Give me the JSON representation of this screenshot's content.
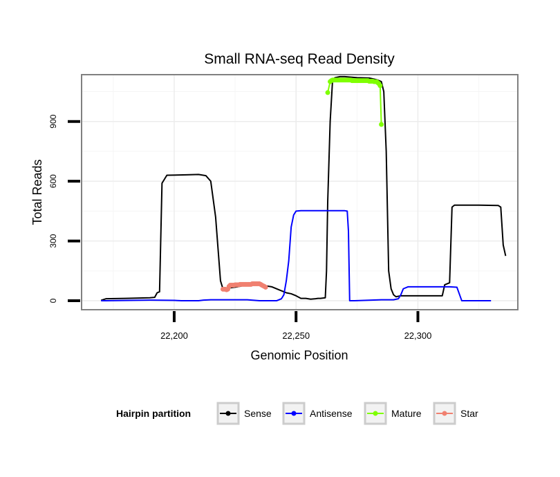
{
  "chart_data": {
    "type": "line",
    "title": "Small RNA-seq Read Density",
    "xlabel": "Genomic Position",
    "ylabel": "Total Reads",
    "xlim": [
      22162,
      22341
    ],
    "ylim": [
      -45,
      1135
    ],
    "x_ticks": [
      22200,
      22250,
      22300
    ],
    "x_tick_labels": [
      "22,200",
      "22,250",
      "22,300"
    ],
    "y_ticks": [
      0,
      300,
      600,
      900
    ],
    "y_tick_labels": [
      "0",
      "300",
      "600",
      "900"
    ],
    "grid": true,
    "legend": {
      "title": "Hairpin partition",
      "position": "bottom",
      "entries": [
        {
          "name": "Sense",
          "color": "#000000"
        },
        {
          "name": "Antisense",
          "color": "#0000ff"
        },
        {
          "name": "Mature",
          "color": "#7fff00"
        },
        {
          "name": "Star",
          "color": "#f08070"
        }
      ]
    },
    "series": [
      {
        "name": "Sense",
        "color": "#000000",
        "marker": false,
        "x": [
          22170,
          22172,
          22180,
          22190,
          22192,
          22193,
          22194,
          22195,
          22197,
          22205,
          22210,
          22213,
          22215,
          22217,
          22218,
          22219,
          22220,
          22226,
          22228,
          22235,
          22240,
          22243,
          22246,
          22248,
          22250,
          22252,
          22254,
          22256,
          22258,
          22259,
          22260,
          22262,
          22262.5,
          22263,
          22264,
          22265,
          22266,
          22268,
          22270,
          22275,
          22280,
          22283,
          22285,
          22286,
          22286.5,
          22287,
          22288,
          22289,
          22290,
          22291,
          22293,
          22300,
          22310,
          22311,
          22313,
          22314,
          22315,
          22318,
          22325,
          22333,
          22334,
          22335,
          22336
        ],
        "y": [
          2,
          10,
          12,
          15,
          17,
          40,
          45,
          590,
          630,
          632,
          634,
          628,
          600,
          420,
          260,
          100,
          60,
          70,
          75,
          80,
          70,
          55,
          40,
          35,
          25,
          12,
          12,
          8,
          10,
          12,
          12,
          15,
          150,
          500,
          900,
          1110,
          1120,
          1125,
          1125,
          1120,
          1118,
          1110,
          1100,
          1050,
          900,
          750,
          150,
          60,
          30,
          20,
          25,
          25,
          25,
          80,
          90,
          470,
          480,
          480,
          480,
          478,
          470,
          280,
          225
        ]
      },
      {
        "name": "Antisense",
        "color": "#0000ff",
        "marker": false,
        "x": [
          22170,
          22172,
          22190,
          22200,
          22203,
          22210,
          22212,
          22215,
          22230,
          22235,
          22242,
          22244,
          22245,
          22246,
          22247,
          22248,
          22249,
          22250,
          22252,
          22260,
          22270,
          22271,
          22271.5,
          22272,
          22274,
          22285,
          22290,
          22292,
          22293,
          22294,
          22296,
          22305,
          22311,
          22313,
          22316,
          22318,
          22330
        ],
        "y": [
          0,
          0,
          3,
          2,
          0,
          0,
          3,
          5,
          5,
          0,
          0,
          10,
          30,
          100,
          200,
          370,
          430,
          450,
          452,
          452,
          452,
          450,
          350,
          0,
          0,
          5,
          5,
          10,
          30,
          60,
          70,
          70,
          70,
          70,
          68,
          0,
          0
        ]
      },
      {
        "name": "Mature",
        "color": "#7fff00",
        "marker": true,
        "x": [
          22263,
          22264,
          22264.5,
          22265,
          22265.5,
          22266,
          22266.5,
          22267,
          22267.5,
          22268,
          22268.5,
          22269,
          22269.5,
          22270,
          22270.5,
          22271,
          22271.5,
          22272,
          22272.5,
          22273,
          22273.5,
          22274,
          22274.5,
          22275,
          22275.5,
          22276,
          22276.5,
          22277,
          22277.5,
          22278,
          22278.5,
          22279,
          22279.5,
          22280,
          22280.5,
          22281,
          22281.5,
          22282,
          22282.5,
          22283,
          22283.5,
          22284,
          22284.5,
          22285
        ],
        "y": [
          1045,
          1100,
          1105,
          1108,
          1108,
          1108,
          1108,
          1108,
          1108,
          1108,
          1108,
          1108,
          1108,
          1108,
          1108,
          1108,
          1108,
          1108,
          1108,
          1105,
          1105,
          1105,
          1105,
          1105,
          1105,
          1105,
          1105,
          1105,
          1105,
          1105,
          1105,
          1105,
          1105,
          1102,
          1102,
          1102,
          1102,
          1100,
          1100,
          1100,
          1095,
          1090,
          1080,
          885
        ]
      },
      {
        "name": "Star",
        "color": "#f08070",
        "marker": true,
        "x": [
          22220,
          22220.5,
          22221,
          22221.5,
          22222,
          22222.5,
          22223,
          22223.5,
          22224,
          22224.5,
          22225,
          22225.5,
          22226,
          22226.5,
          22227,
          22227.5,
          22228,
          22228.5,
          22229,
          22229.5,
          22230,
          22230.5,
          22231,
          22231.5,
          22232,
          22232.5,
          22233,
          22233.5,
          22234,
          22234.5,
          22235,
          22235.5,
          22236,
          22236.5,
          22237,
          22237.5
        ],
        "y": [
          58,
          58,
          58,
          55,
          58,
          72,
          78,
          78,
          78,
          78,
          80,
          80,
          80,
          80,
          82,
          82,
          82,
          82,
          82,
          82,
          82,
          82,
          82,
          82,
          85,
          85,
          85,
          85,
          85,
          85,
          85,
          82,
          78,
          75,
          72,
          68
        ]
      }
    ]
  }
}
